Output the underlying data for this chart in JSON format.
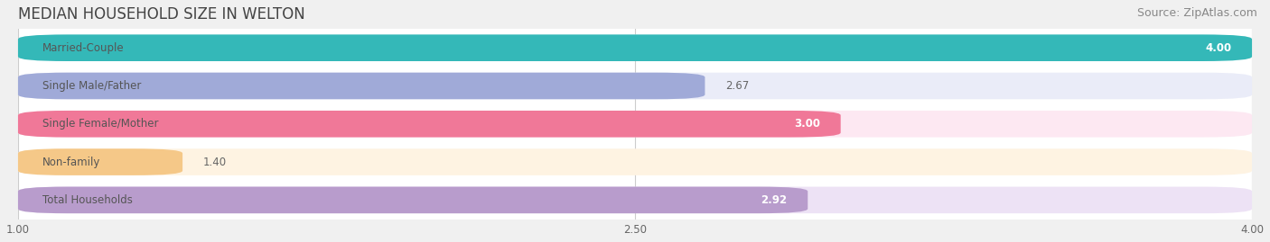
{
  "title": "MEDIAN HOUSEHOLD SIZE IN WELTON",
  "source": "Source: ZipAtlas.com",
  "categories": [
    "Married-Couple",
    "Single Male/Father",
    "Single Female/Mother",
    "Non-family",
    "Total Households"
  ],
  "values": [
    4.0,
    2.67,
    3.0,
    1.4,
    2.92
  ],
  "bar_colors": [
    "#34b8b8",
    "#a0aad8",
    "#f07898",
    "#f5c888",
    "#b89ccc"
  ],
  "bar_bg_colors": [
    "#eaf8f8",
    "#eaecf8",
    "#fde8f2",
    "#fef3e2",
    "#ede2f5"
  ],
  "xmin": 1.0,
  "xmax": 4.0,
  "xticks": [
    1.0,
    2.5,
    4.0
  ],
  "title_fontsize": 12,
  "source_fontsize": 9,
  "label_fontsize": 8.5,
  "value_fontsize": 8.5,
  "fig_bg_color": "#f0f0f0",
  "plot_bg_color": "#ffffff",
  "grid_color": "#cccccc",
  "label_color": "#555555",
  "value_color_inside": "#ffffff",
  "value_color_outside": "#666666"
}
